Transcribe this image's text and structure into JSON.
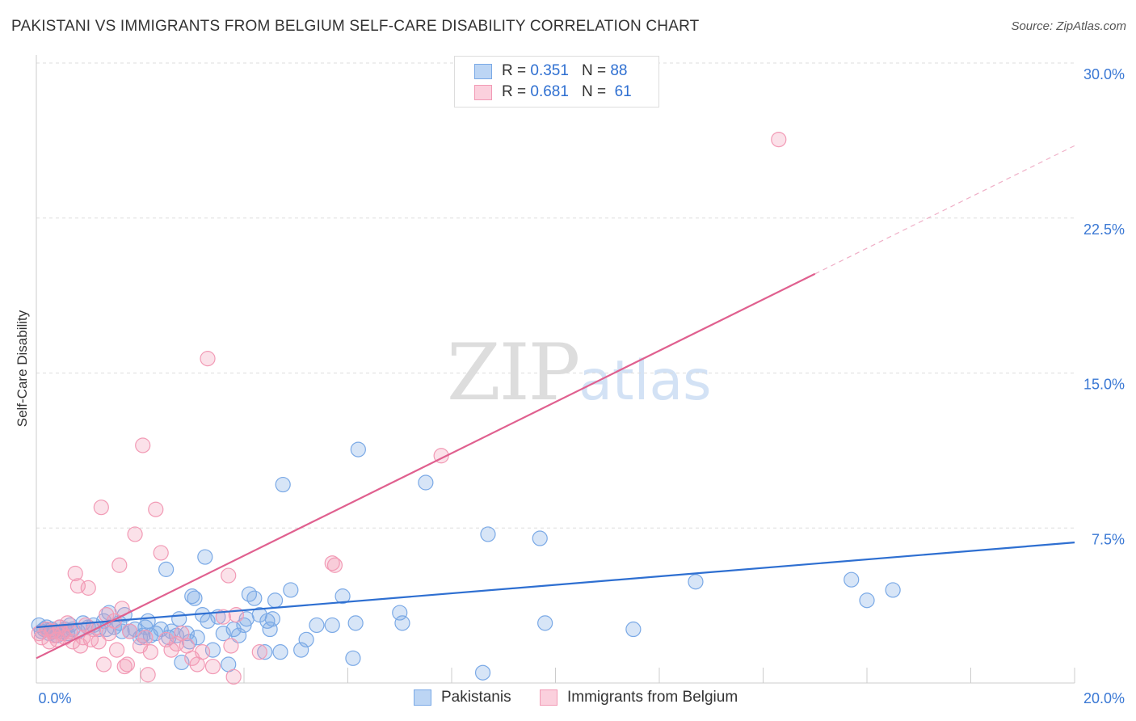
{
  "title": "PAKISTANI VS IMMIGRANTS FROM BELGIUM SELF-CARE DISABILITY CORRELATION CHART",
  "source": "Source: ZipAtlas.com",
  "watermark": {
    "zip": "ZIP",
    "atlas": "atlas"
  },
  "legend": {
    "r_label": "R =",
    "n_label": "N =",
    "rows": [
      {
        "r": "0.351",
        "n": "88",
        "color": "#7aa9e6"
      },
      {
        "r": "0.681",
        "n": "61",
        "color": "#f29ab5"
      }
    ]
  },
  "chart_data": {
    "type": "scatter",
    "title": "PAKISTANI VS IMMIGRANTS FROM BELGIUM SELF-CARE DISABILITY CORRELATION CHART",
    "xlabel": "",
    "ylabel": "Self-Care Disability",
    "xlim": [
      0,
      20
    ],
    "ylim": [
      0,
      30
    ],
    "x_tick_labels": [
      "0.0%",
      "20.0%"
    ],
    "y_ticks": [
      7.5,
      15.0,
      22.5,
      30.0
    ],
    "y_tick_labels": [
      "7.5%",
      "15.0%",
      "22.5%",
      "30.0%"
    ],
    "grid": true,
    "series": [
      {
        "name": "Pakistanis",
        "color": "#7aa9e6",
        "line_color": "#2e6fd1",
        "trend": {
          "x": [
            0,
            20
          ],
          "y": [
            2.7,
            6.8
          ],
          "dashed_from": null
        },
        "points": [
          [
            0.05,
            2.8
          ],
          [
            0.1,
            2.5
          ],
          [
            0.15,
            2.6
          ],
          [
            0.2,
            2.7
          ],
          [
            0.25,
            2.4
          ],
          [
            0.3,
            2.6
          ],
          [
            0.35,
            2.5
          ],
          [
            0.4,
            2.3
          ],
          [
            0.45,
            2.7
          ],
          [
            0.5,
            2.5
          ],
          [
            0.55,
            2.6
          ],
          [
            0.6,
            2.4
          ],
          [
            0.65,
            2.8
          ],
          [
            0.7,
            2.6
          ],
          [
            0.8,
            2.5
          ],
          [
            0.9,
            2.9
          ],
          [
            1.0,
            2.7
          ],
          [
            1.1,
            2.8
          ],
          [
            1.2,
            2.6
          ],
          [
            1.3,
            3.0
          ],
          [
            1.35,
            2.6
          ],
          [
            1.4,
            3.4
          ],
          [
            1.5,
            2.7
          ],
          [
            1.6,
            2.9
          ],
          [
            1.65,
            2.5
          ],
          [
            1.7,
            3.3
          ],
          [
            1.8,
            2.5
          ],
          [
            1.9,
            2.6
          ],
          [
            2.0,
            2.2
          ],
          [
            2.05,
            2.3
          ],
          [
            2.1,
            2.7
          ],
          [
            2.15,
            3.0
          ],
          [
            2.2,
            2.3
          ],
          [
            2.3,
            2.4
          ],
          [
            2.4,
            2.6
          ],
          [
            2.5,
            5.5
          ],
          [
            2.55,
            2.2
          ],
          [
            2.6,
            2.5
          ],
          [
            2.7,
            2.3
          ],
          [
            2.75,
            3.1
          ],
          [
            2.8,
            1.0
          ],
          [
            2.9,
            2.4
          ],
          [
            2.95,
            2.0
          ],
          [
            3.0,
            4.2
          ],
          [
            3.05,
            4.1
          ],
          [
            3.1,
            2.2
          ],
          [
            3.2,
            3.3
          ],
          [
            3.25,
            6.1
          ],
          [
            3.3,
            3.0
          ],
          [
            3.4,
            1.6
          ],
          [
            3.5,
            3.2
          ],
          [
            3.6,
            2.4
          ],
          [
            3.7,
            0.9
          ],
          [
            3.8,
            2.6
          ],
          [
            3.9,
            2.3
          ],
          [
            4.0,
            2.8
          ],
          [
            4.05,
            3.1
          ],
          [
            4.1,
            4.3
          ],
          [
            4.2,
            4.1
          ],
          [
            4.3,
            3.3
          ],
          [
            4.4,
            1.5
          ],
          [
            4.45,
            3.0
          ],
          [
            4.5,
            2.6
          ],
          [
            4.55,
            3.1
          ],
          [
            4.6,
            4.0
          ],
          [
            4.7,
            1.5
          ],
          [
            4.75,
            9.6
          ],
          [
            4.9,
            4.5
          ],
          [
            5.1,
            1.6
          ],
          [
            5.2,
            2.1
          ],
          [
            5.4,
            2.8
          ],
          [
            5.7,
            2.8
          ],
          [
            5.9,
            4.2
          ],
          [
            6.1,
            1.2
          ],
          [
            6.15,
            2.9
          ],
          [
            6.2,
            11.3
          ],
          [
            7.0,
            3.4
          ],
          [
            7.05,
            2.9
          ],
          [
            7.5,
            9.7
          ],
          [
            8.6,
            0.5
          ],
          [
            8.7,
            7.2
          ],
          [
            9.7,
            7.0
          ],
          [
            9.8,
            2.9
          ],
          [
            11.5,
            2.6
          ],
          [
            12.7,
            4.9
          ],
          [
            15.7,
            5.0
          ],
          [
            16.0,
            4.0
          ],
          [
            16.5,
            4.5
          ]
        ]
      },
      {
        "name": "Immigrants from Belgium",
        "color": "#f29ab5",
        "line_color": "#e0608f",
        "trend": {
          "x": [
            0,
            20
          ],
          "y": [
            1.2,
            26.0
          ],
          "dashed_from": 15.0
        },
        "points": [
          [
            0.05,
            2.4
          ],
          [
            0.1,
            2.2
          ],
          [
            0.2,
            2.6
          ],
          [
            0.25,
            2.0
          ],
          [
            0.3,
            2.5
          ],
          [
            0.35,
            2.3
          ],
          [
            0.4,
            2.1
          ],
          [
            0.45,
            2.7
          ],
          [
            0.5,
            2.4
          ],
          [
            0.55,
            2.2
          ],
          [
            0.6,
            2.9
          ],
          [
            0.65,
            2.5
          ],
          [
            0.7,
            2.0
          ],
          [
            0.75,
            5.3
          ],
          [
            0.8,
            4.7
          ],
          [
            0.85,
            1.8
          ],
          [
            0.9,
            2.2
          ],
          [
            0.95,
            2.8
          ],
          [
            1.0,
            4.6
          ],
          [
            1.05,
            2.1
          ],
          [
            1.1,
            2.6
          ],
          [
            1.2,
            2.0
          ],
          [
            1.25,
            8.5
          ],
          [
            1.3,
            0.9
          ],
          [
            1.35,
            3.3
          ],
          [
            1.4,
            2.4
          ],
          [
            1.5,
            3.0
          ],
          [
            1.55,
            1.6
          ],
          [
            1.6,
            5.7
          ],
          [
            1.65,
            3.6
          ],
          [
            1.7,
            0.8
          ],
          [
            1.75,
            0.9
          ],
          [
            1.8,
            2.5
          ],
          [
            1.9,
            7.2
          ],
          [
            2.0,
            1.8
          ],
          [
            2.05,
            11.5
          ],
          [
            2.1,
            2.2
          ],
          [
            2.15,
            0.4
          ],
          [
            2.2,
            1.5
          ],
          [
            2.3,
            8.4
          ],
          [
            2.4,
            6.3
          ],
          [
            2.5,
            2.1
          ],
          [
            2.6,
            1.6
          ],
          [
            2.7,
            1.9
          ],
          [
            2.8,
            2.4
          ],
          [
            2.9,
            1.8
          ],
          [
            3.0,
            1.2
          ],
          [
            3.1,
            0.9
          ],
          [
            3.2,
            1.5
          ],
          [
            3.3,
            15.7
          ],
          [
            3.4,
            0.8
          ],
          [
            3.6,
            3.2
          ],
          [
            3.7,
            5.2
          ],
          [
            3.75,
            1.8
          ],
          [
            3.8,
            0.3
          ],
          [
            3.85,
            3.3
          ],
          [
            4.3,
            1.5
          ],
          [
            5.7,
            5.8
          ],
          [
            5.75,
            5.7
          ],
          [
            7.8,
            11.0
          ],
          [
            14.3,
            26.3
          ]
        ]
      }
    ]
  },
  "bottom_legend": [
    "Pakistanis",
    "Immigrants from Belgium"
  ]
}
